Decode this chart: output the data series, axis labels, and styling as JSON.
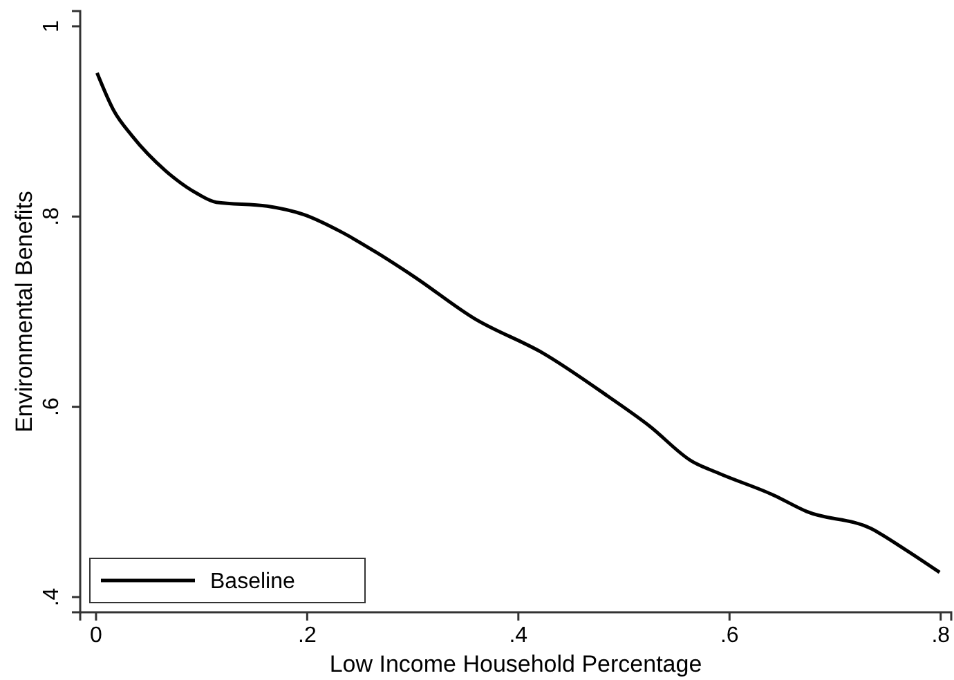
{
  "chart_data": {
    "type": "line",
    "xlabel": "Low Income Household Percentage",
    "ylabel": "Environmental Benefits",
    "xlim": [
      -0.015,
      0.81
    ],
    "ylim": [
      0.384,
      1.016
    ],
    "xticks": [
      {
        "value": 0,
        "label": "0"
      },
      {
        "value": 0.2,
        "label": ".2"
      },
      {
        "value": 0.4,
        "label": ".4"
      },
      {
        "value": 0.6,
        "label": ".6"
      },
      {
        "value": 0.8,
        "label": ".8"
      }
    ],
    "yticks": [
      {
        "value": 0.4,
        "label": ".4"
      },
      {
        "value": 0.6,
        "label": ".6"
      },
      {
        "value": 0.8,
        "label": ".8"
      },
      {
        "value": 1,
        "label": "1"
      }
    ],
    "grid": false,
    "legend": "bottom left",
    "line_style": "solid",
    "marker": "none",
    "series": [
      {
        "name": "Baseline",
        "color": "#000000",
        "x": [
          0.001,
          0.017,
          0.034,
          0.066,
          0.096,
          0.114,
          0.162,
          0.197,
          0.232,
          0.266,
          0.301,
          0.358,
          0.424,
          0.485,
          0.524,
          0.564,
          0.59,
          0.642,
          0.673,
          0.734,
          0.765,
          0.799
        ],
        "values": [
          0.951,
          0.911,
          0.885,
          0.848,
          0.824,
          0.815,
          0.811,
          0.802,
          0.784,
          0.762,
          0.737,
          0.693,
          0.656,
          0.611,
          0.58,
          0.543,
          0.53,
          0.507,
          0.49,
          0.472,
          0.451,
          0.426
        ]
      }
    ]
  }
}
